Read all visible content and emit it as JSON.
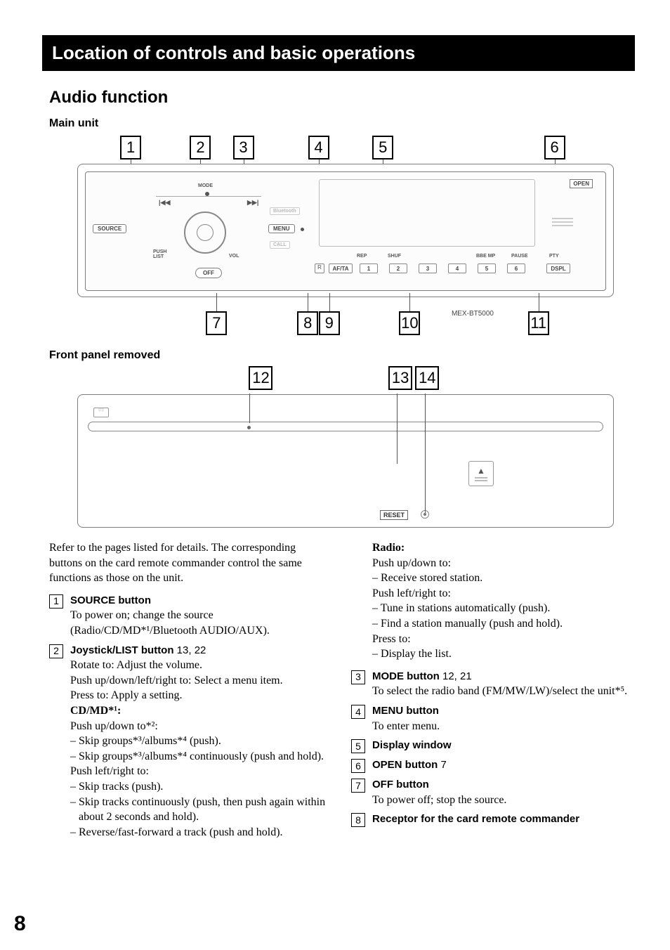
{
  "header": {
    "section_title": "Location of controls and basic operations"
  },
  "titles": {
    "audio_function": "Audio function",
    "main_unit": "Main unit",
    "front_removed": "Front panel removed"
  },
  "diagram": {
    "top_callouts": [
      "1",
      "2",
      "3",
      "4",
      "5",
      "6"
    ],
    "top_positions_pct": [
      8,
      21,
      29,
      43,
      55,
      87
    ],
    "bottom_callouts": [
      "7",
      "8",
      "9",
      "10",
      "11"
    ],
    "bottom_positions_pct": [
      24,
      41,
      45,
      60,
      84
    ],
    "model": "MEX-BT5000",
    "labels": {
      "open": "OPEN",
      "source": "SOURCE",
      "mode": "MODE",
      "menu": "MENU",
      "call": "CALL",
      "bluetooth": "Bluetooth",
      "push_list": "PUSH\nLIST",
      "vol": "VOL",
      "off": "OFF",
      "afta": "AF/TA",
      "dspl": "DSPL",
      "rep": "REP",
      "shuf": "SHUF",
      "bbemp": "BBE MP",
      "pause": "PAUSE",
      "pty": "PTY",
      "r": "R",
      "prev": "|◀◀",
      "next": "▶▶|"
    },
    "num_buttons": [
      "1",
      "2",
      "3",
      "4",
      "5",
      "6"
    ]
  },
  "front_removed": {
    "callouts": [
      "12",
      "13",
      "14"
    ],
    "positions_pct": [
      32,
      58,
      63
    ],
    "reset": "RESET",
    "eject": "▲"
  },
  "intro": "Refer to the pages listed for details. The corresponding buttons on the card remote commander control the same functions as those on the unit.",
  "items": [
    {
      "n": "1",
      "head": "SOURCE button",
      "pages": "",
      "body": "To power on; change the source (Radio/CD/MD*¹/Bluetooth AUDIO/AUX)."
    },
    {
      "n": "2",
      "head": "Joystick/LIST button",
      "pages": "  13, 22",
      "body": "Rotate to: Adjust the volume.\nPush up/down/left/right to: Select a menu item.\nPress to: Apply a setting.",
      "sub": [
        {
          "label": "CD/MD*¹:",
          "lines": [
            "Push up/down to*²:",
            "– Skip groups*³/albums*⁴ (push).",
            "– Skip groups*³/albums*⁴ continuously (push and hold).",
            "Push left/right to:",
            "– Skip tracks (push).",
            "– Skip tracks continuously (push, then push again within about 2 seconds and hold).",
            "– Reverse/fast-forward a track (push and hold)."
          ]
        }
      ]
    }
  ],
  "col2_pre": {
    "label": "Radio:",
    "lines": [
      "Push up/down to:",
      "– Receive stored station.",
      "Push left/right to:",
      "– Tune in stations automatically (push).",
      "– Find a station manually (push and hold).",
      "Press to:",
      "– Display the list."
    ]
  },
  "items2": [
    {
      "n": "3",
      "head": "MODE button",
      "pages": "  12, 21",
      "body": "To select the radio band (FM/MW/LW)/select the unit*⁵."
    },
    {
      "n": "4",
      "head": "MENU button",
      "pages": "",
      "body": "To enter menu."
    },
    {
      "n": "5",
      "head": "Display window",
      "pages": "",
      "body": ""
    },
    {
      "n": "6",
      "head": "OPEN button",
      "pages": "  7",
      "body": ""
    },
    {
      "n": "7",
      "head": "OFF button",
      "pages": "",
      "body": "To power off; stop the source."
    },
    {
      "n": "8",
      "head": "Receptor for the card remote commander",
      "pages": "",
      "body": ""
    }
  ],
  "page_number": "8",
  "colors": {
    "border": "#7d7d7d",
    "text": "#000",
    "subtle": "#555"
  }
}
